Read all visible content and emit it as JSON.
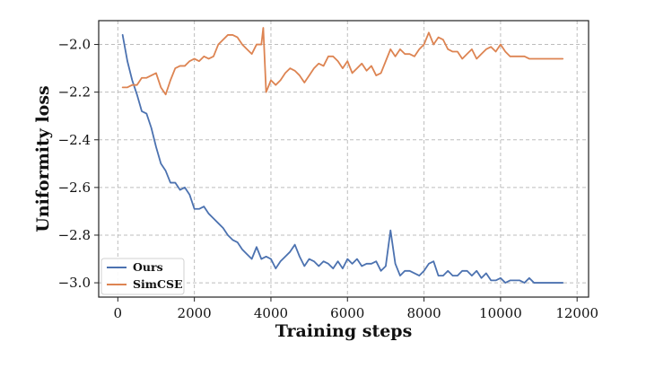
{
  "chart_data": {
    "type": "line",
    "xlabel": "Training steps",
    "ylabel": "Uniformity loss",
    "xlim": [
      -500,
      12300
    ],
    "ylim": [
      -3.06,
      -1.9
    ],
    "x_ticks": [
      0,
      2000,
      4000,
      6000,
      8000,
      10000,
      12000
    ],
    "y_ticks": [
      -3.0,
      -2.8,
      -2.6,
      -2.4,
      -2.2,
      -2.0
    ],
    "x_tick_labels": [
      "0",
      "2000",
      "4000",
      "6000",
      "8000",
      "10000",
      "12000"
    ],
    "y_tick_labels": [
      "−3.0",
      "−2.8",
      "−2.6",
      "−2.4",
      "−2.2",
      "−2.0"
    ],
    "grid": true,
    "legend_position": "bottom-left",
    "series": [
      {
        "name": "Ours",
        "color": "#4c72b0",
        "points": [
          [
            125,
            -1.96
          ],
          [
            250,
            -2.07
          ],
          [
            375,
            -2.15
          ],
          [
            500,
            -2.21
          ],
          [
            625,
            -2.28
          ],
          [
            750,
            -2.29
          ],
          [
            875,
            -2.35
          ],
          [
            1000,
            -2.43
          ],
          [
            1125,
            -2.5
          ],
          [
            1250,
            -2.53
          ],
          [
            1375,
            -2.58
          ],
          [
            1500,
            -2.58
          ],
          [
            1625,
            -2.61
          ],
          [
            1750,
            -2.6
          ],
          [
            1875,
            -2.63
          ],
          [
            2000,
            -2.69
          ],
          [
            2125,
            -2.69
          ],
          [
            2250,
            -2.68
          ],
          [
            2375,
            -2.71
          ],
          [
            2500,
            -2.73
          ],
          [
            2625,
            -2.75
          ],
          [
            2750,
            -2.77
          ],
          [
            2875,
            -2.8
          ],
          [
            3000,
            -2.82
          ],
          [
            3125,
            -2.83
          ],
          [
            3250,
            -2.86
          ],
          [
            3375,
            -2.88
          ],
          [
            3500,
            -2.9
          ],
          [
            3625,
            -2.85
          ],
          [
            3750,
            -2.9
          ],
          [
            3875,
            -2.89
          ],
          [
            4000,
            -2.9
          ],
          [
            4125,
            -2.94
          ],
          [
            4250,
            -2.91
          ],
          [
            4375,
            -2.89
          ],
          [
            4500,
            -2.87
          ],
          [
            4625,
            -2.84
          ],
          [
            4750,
            -2.89
          ],
          [
            4875,
            -2.93
          ],
          [
            5000,
            -2.9
          ],
          [
            5125,
            -2.91
          ],
          [
            5250,
            -2.93
          ],
          [
            5375,
            -2.91
          ],
          [
            5500,
            -2.92
          ],
          [
            5625,
            -2.94
          ],
          [
            5750,
            -2.91
          ],
          [
            5875,
            -2.94
          ],
          [
            6000,
            -2.9
          ],
          [
            6125,
            -2.92
          ],
          [
            6250,
            -2.9
          ],
          [
            6375,
            -2.93
          ],
          [
            6500,
            -2.92
          ],
          [
            6625,
            -2.92
          ],
          [
            6750,
            -2.91
          ],
          [
            6875,
            -2.95
          ],
          [
            7000,
            -2.93
          ],
          [
            7125,
            -2.78
          ],
          [
            7250,
            -2.92
          ],
          [
            7375,
            -2.97
          ],
          [
            7500,
            -2.95
          ],
          [
            7625,
            -2.95
          ],
          [
            7750,
            -2.96
          ],
          [
            7875,
            -2.97
          ],
          [
            8000,
            -2.95
          ],
          [
            8125,
            -2.92
          ],
          [
            8250,
            -2.91
          ],
          [
            8375,
            -2.97
          ],
          [
            8500,
            -2.97
          ],
          [
            8625,
            -2.95
          ],
          [
            8750,
            -2.97
          ],
          [
            8875,
            -2.97
          ],
          [
            9000,
            -2.95
          ],
          [
            9125,
            -2.95
          ],
          [
            9250,
            -2.97
          ],
          [
            9375,
            -2.95
          ],
          [
            9500,
            -2.98
          ],
          [
            9625,
            -2.96
          ],
          [
            9750,
            -2.99
          ],
          [
            9875,
            -2.99
          ],
          [
            10000,
            -2.98
          ],
          [
            10125,
            -3.0
          ],
          [
            10250,
            -2.99
          ],
          [
            10375,
            -2.99
          ],
          [
            10500,
            -2.99
          ],
          [
            10625,
            -3.0
          ],
          [
            10750,
            -2.98
          ],
          [
            10875,
            -3.0
          ],
          [
            11000,
            -3.0
          ],
          [
            11125,
            -3.0
          ],
          [
            11250,
            -3.0
          ],
          [
            11375,
            -3.0
          ],
          [
            11500,
            -3.0
          ],
          [
            11625,
            -3.0
          ]
        ]
      },
      {
        "name": "SimCSE",
        "color": "#dd8452",
        "points": [
          [
            125,
            -2.18
          ],
          [
            250,
            -2.18
          ],
          [
            375,
            -2.17
          ],
          [
            500,
            -2.17
          ],
          [
            625,
            -2.14
          ],
          [
            750,
            -2.14
          ],
          [
            875,
            -2.13
          ],
          [
            1000,
            -2.12
          ],
          [
            1125,
            -2.18
          ],
          [
            1250,
            -2.21
          ],
          [
            1375,
            -2.15
          ],
          [
            1500,
            -2.1
          ],
          [
            1625,
            -2.09
          ],
          [
            1750,
            -2.09
          ],
          [
            1875,
            -2.07
          ],
          [
            2000,
            -2.06
          ],
          [
            2125,
            -2.07
          ],
          [
            2250,
            -2.05
          ],
          [
            2375,
            -2.06
          ],
          [
            2500,
            -2.05
          ],
          [
            2625,
            -2.0
          ],
          [
            2750,
            -1.98
          ],
          [
            2875,
            -1.96
          ],
          [
            3000,
            -1.96
          ],
          [
            3125,
            -1.97
          ],
          [
            3250,
            -2.0
          ],
          [
            3375,
            -2.02
          ],
          [
            3500,
            -2.04
          ],
          [
            3625,
            -2.0
          ],
          [
            3750,
            -2.0
          ],
          [
            3800,
            -1.93
          ],
          [
            3875,
            -2.2
          ],
          [
            4000,
            -2.15
          ],
          [
            4125,
            -2.17
          ],
          [
            4250,
            -2.15
          ],
          [
            4375,
            -2.12
          ],
          [
            4500,
            -2.1
          ],
          [
            4625,
            -2.11
          ],
          [
            4750,
            -2.13
          ],
          [
            4875,
            -2.16
          ],
          [
            5000,
            -2.13
          ],
          [
            5125,
            -2.1
          ],
          [
            5250,
            -2.08
          ],
          [
            5375,
            -2.09
          ],
          [
            5500,
            -2.05
          ],
          [
            5625,
            -2.05
          ],
          [
            5750,
            -2.07
          ],
          [
            5875,
            -2.1
          ],
          [
            6000,
            -2.07
          ],
          [
            6125,
            -2.12
          ],
          [
            6250,
            -2.1
          ],
          [
            6375,
            -2.08
          ],
          [
            6500,
            -2.11
          ],
          [
            6625,
            -2.09
          ],
          [
            6750,
            -2.13
          ],
          [
            6875,
            -2.12
          ],
          [
            7000,
            -2.07
          ],
          [
            7125,
            -2.02
          ],
          [
            7250,
            -2.05
          ],
          [
            7375,
            -2.02
          ],
          [
            7500,
            -2.04
          ],
          [
            7625,
            -2.04
          ],
          [
            7750,
            -2.05
          ],
          [
            7875,
            -2.02
          ],
          [
            8000,
            -2.0
          ],
          [
            8125,
            -1.95
          ],
          [
            8250,
            -2.0
          ],
          [
            8375,
            -1.97
          ],
          [
            8500,
            -1.98
          ],
          [
            8625,
            -2.02
          ],
          [
            8750,
            -2.03
          ],
          [
            8875,
            -2.03
          ],
          [
            9000,
            -2.06
          ],
          [
            9125,
            -2.04
          ],
          [
            9250,
            -2.02
          ],
          [
            9375,
            -2.06
          ],
          [
            9500,
            -2.04
          ],
          [
            9625,
            -2.02
          ],
          [
            9750,
            -2.01
          ],
          [
            9875,
            -2.03
          ],
          [
            10000,
            -2.0
          ],
          [
            10125,
            -2.03
          ],
          [
            10250,
            -2.05
          ],
          [
            10375,
            -2.05
          ],
          [
            10500,
            -2.05
          ],
          [
            10625,
            -2.05
          ],
          [
            10750,
            -2.06
          ],
          [
            10875,
            -2.06
          ],
          [
            11000,
            -2.06
          ],
          [
            11125,
            -2.06
          ],
          [
            11250,
            -2.06
          ],
          [
            11375,
            -2.06
          ],
          [
            11500,
            -2.06
          ],
          [
            11625,
            -2.06
          ]
        ]
      }
    ]
  }
}
